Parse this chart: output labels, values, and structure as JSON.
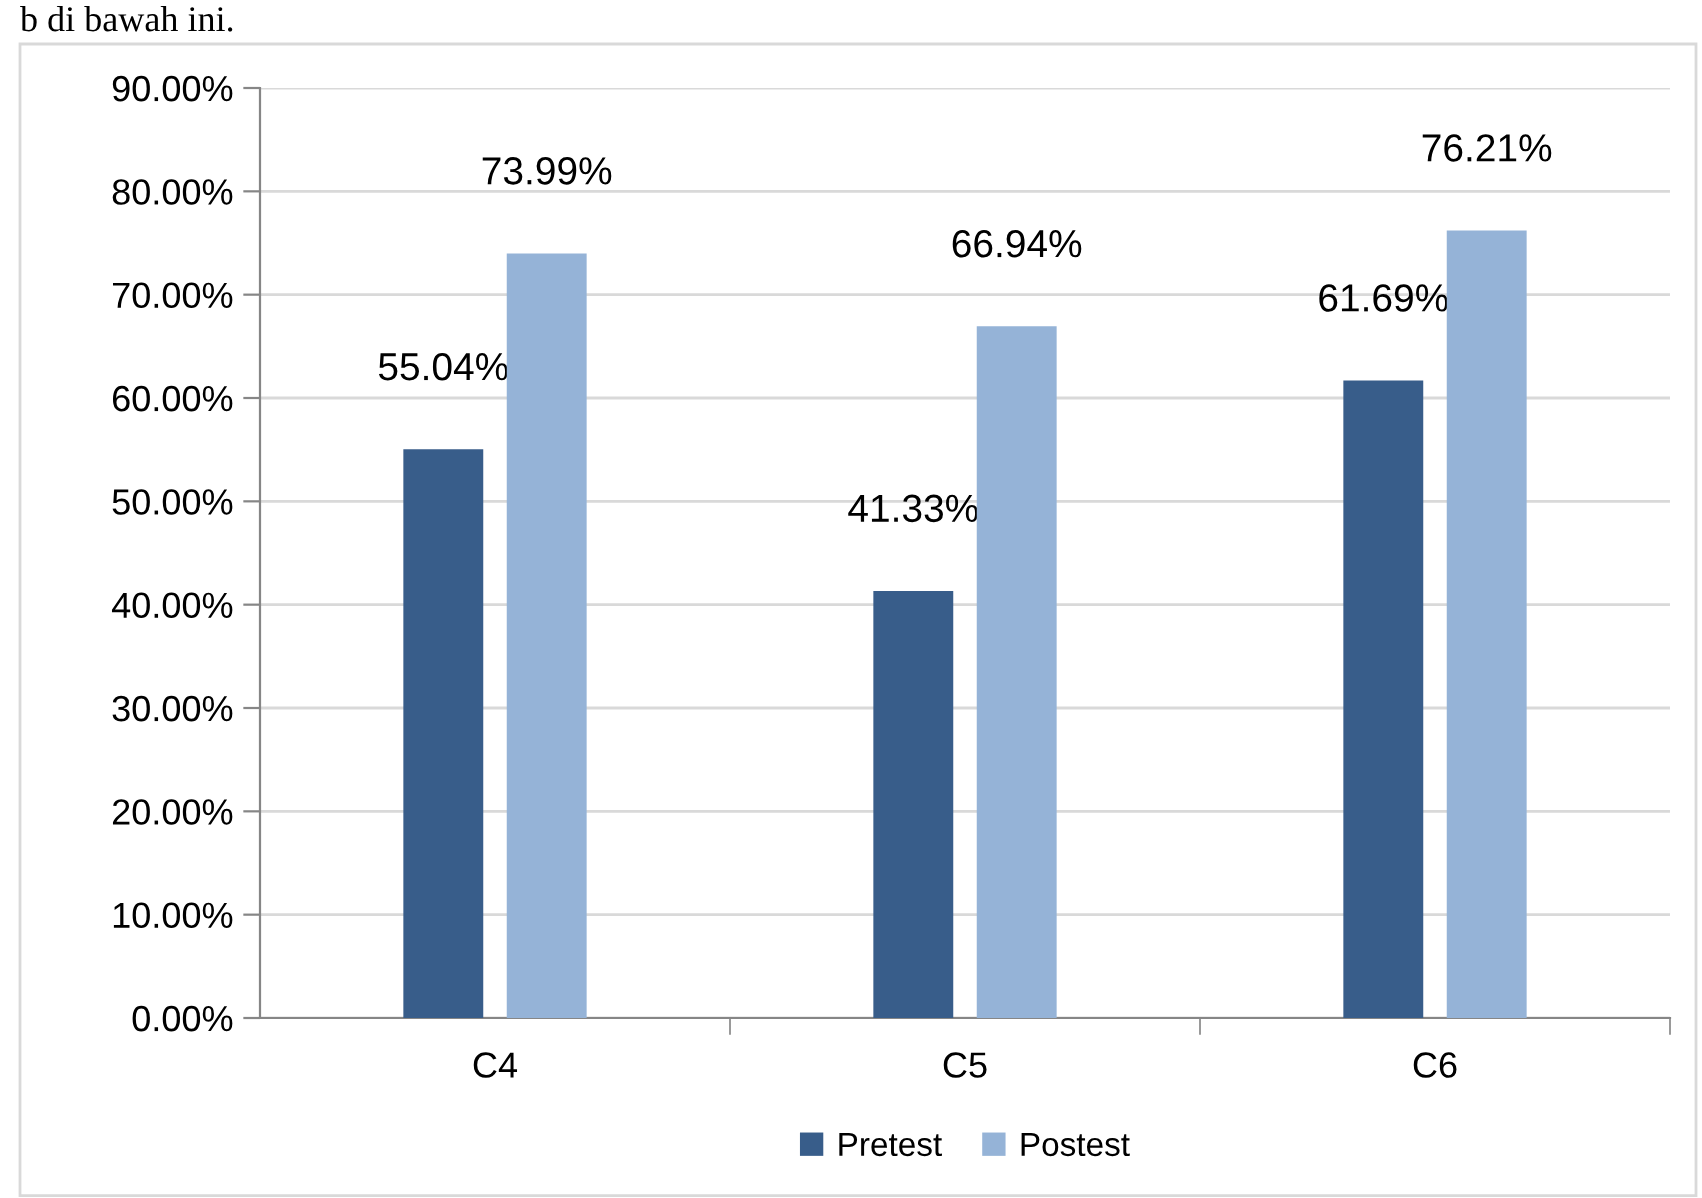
{
  "chart_data": {
    "type": "bar",
    "categories": [
      "C4",
      "C5",
      "C6"
    ],
    "series": [
      {
        "name": "Pretest",
        "color": "#385d8a",
        "values": [
          55.04,
          41.33,
          61.69
        ],
        "value_labels": [
          "55.04%",
          "41.33%",
          "61.69%"
        ]
      },
      {
        "name": "Postest",
        "color": "#95b3d7",
        "values": [
          73.99,
          66.94,
          76.21
        ],
        "value_labels": [
          "73.99%",
          "66.94%",
          "76.21%"
        ]
      }
    ],
    "ylim": [
      0,
      90
    ],
    "yticks": [
      {
        "value": 0,
        "label": "0.00%"
      },
      {
        "value": 10,
        "label": "10.00%"
      },
      {
        "value": 20,
        "label": "20.00%"
      },
      {
        "value": 30,
        "label": "30.00%"
      },
      {
        "value": 40,
        "label": "40.00%"
      },
      {
        "value": 50,
        "label": "50.00%"
      },
      {
        "value": 60,
        "label": "60.00%"
      },
      {
        "value": 70,
        "label": "70.00%"
      },
      {
        "value": 80,
        "label": "80.00%"
      },
      {
        "value": 90,
        "label": "90.00%"
      }
    ],
    "grid": "y",
    "legend": "bottom",
    "annotations": [
      "b di bawah ini."
    ]
  }
}
